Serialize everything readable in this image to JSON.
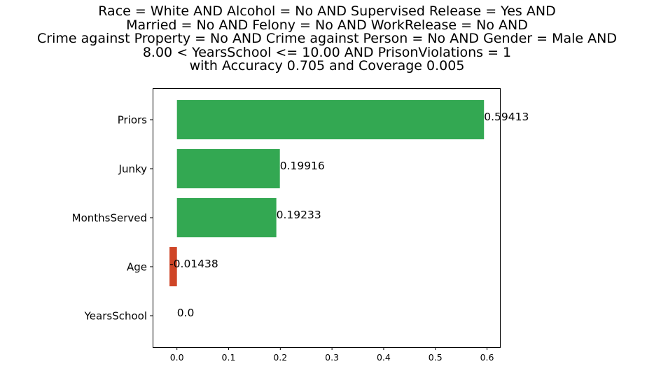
{
  "chart_data": {
    "type": "bar",
    "orientation": "horizontal",
    "title_lines": [
      "Race = White AND Alcohol = No AND Supervised Release = Yes AND",
      "Married = No AND Felony = No AND WorkRelease = No AND",
      "Crime against Property = No AND Crime against Person = No AND Gender = Male AND",
      "8.00 < YearsSchool <= 10.00 AND PrisonViolations = 1",
      "with Accuracy 0.705 and Coverage 0.005"
    ],
    "categories": [
      "Priors",
      "Junky",
      "MonthsServed",
      "Age",
      "YearsSchool"
    ],
    "values": [
      0.59413,
      0.19916,
      0.19233,
      -0.01438,
      0.0
    ],
    "value_labels": [
      "0.59413",
      "0.19916",
      "0.19233",
      "-0.01438",
      "0.0"
    ],
    "xlim": [
      -0.047,
      0.625
    ],
    "x_ticks": [
      0.0,
      0.1,
      0.2,
      0.3,
      0.4,
      0.5,
      0.6
    ],
    "x_tick_labels": [
      "0.0",
      "0.1",
      "0.2",
      "0.3",
      "0.4",
      "0.5",
      "0.6"
    ],
    "xlabel": "",
    "ylabel": "",
    "grid": false,
    "colors": {
      "positive": "#33a852",
      "negative": "#cf4527"
    }
  }
}
